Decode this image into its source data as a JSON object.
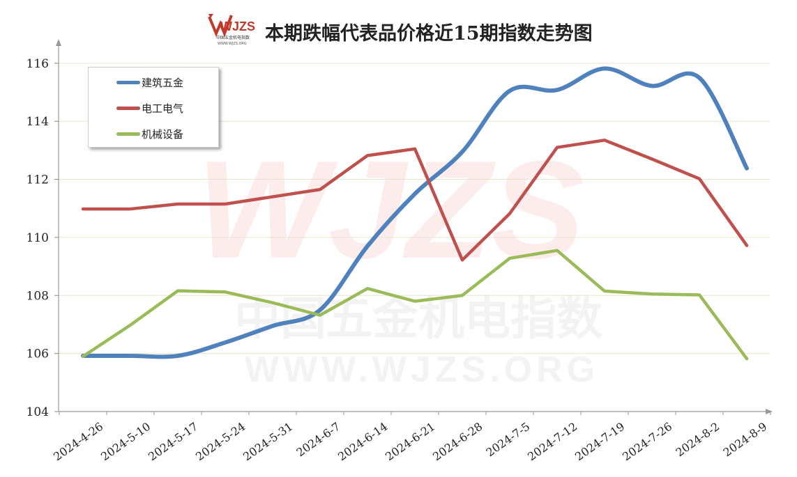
{
  "header": {
    "title": "本期跌幅代表品价格近15期指数走势图",
    "logo_text": "WJZS",
    "logo_subtext": "中国五金机电指数",
    "logo_url": "WWW.WJZS.ORG"
  },
  "watermark": {
    "mark": "WJZS",
    "cn": "中国五金机电指数",
    "url": "WWW.WJZS.ORG"
  },
  "chart_data": {
    "type": "line",
    "title": "本期跌幅代表品价格近15期指数走势图",
    "xlabel": "",
    "ylabel": "",
    "categories": [
      "2024-4-26",
      "2024-5-10",
      "2024-5-17",
      "2024-5-24",
      "2024-5-31",
      "2024-6-7",
      "2024-6-14",
      "2024-6-21",
      "2024-6-28",
      "2024-7-5",
      "2024-7-12",
      "2024-7-19",
      "2024-7-26",
      "2024-8-2",
      "2024-8-9"
    ],
    "ylim": [
      104,
      116.5
    ],
    "yticks": [
      104,
      106,
      108,
      110,
      112,
      114,
      116
    ],
    "grid": true,
    "legend": "top-left",
    "series": [
      {
        "name": "建筑五金",
        "color": "#4f81bd",
        "smooth": true,
        "values": [
          105.92,
          105.92,
          105.92,
          106.38,
          106.95,
          107.5,
          109.7,
          111.5,
          112.95,
          115.05,
          115.08,
          115.82,
          115.22,
          115.5,
          112.38
        ]
      },
      {
        "name": "电工电气",
        "color": "#c0504d",
        "smooth": false,
        "values": [
          110.98,
          110.98,
          111.15,
          111.15,
          111.4,
          111.65,
          112.82,
          113.05,
          109.22,
          110.82,
          113.1,
          113.35,
          112.7,
          112.02,
          109.72
        ]
      },
      {
        "name": "机械设备",
        "color": "#9bbb59",
        "smooth": false,
        "values": [
          105.9,
          106.98,
          108.16,
          108.12,
          107.75,
          107.32,
          108.24,
          107.8,
          108.0,
          109.28,
          109.55,
          108.15,
          108.05,
          108.02,
          105.82
        ]
      }
    ]
  }
}
